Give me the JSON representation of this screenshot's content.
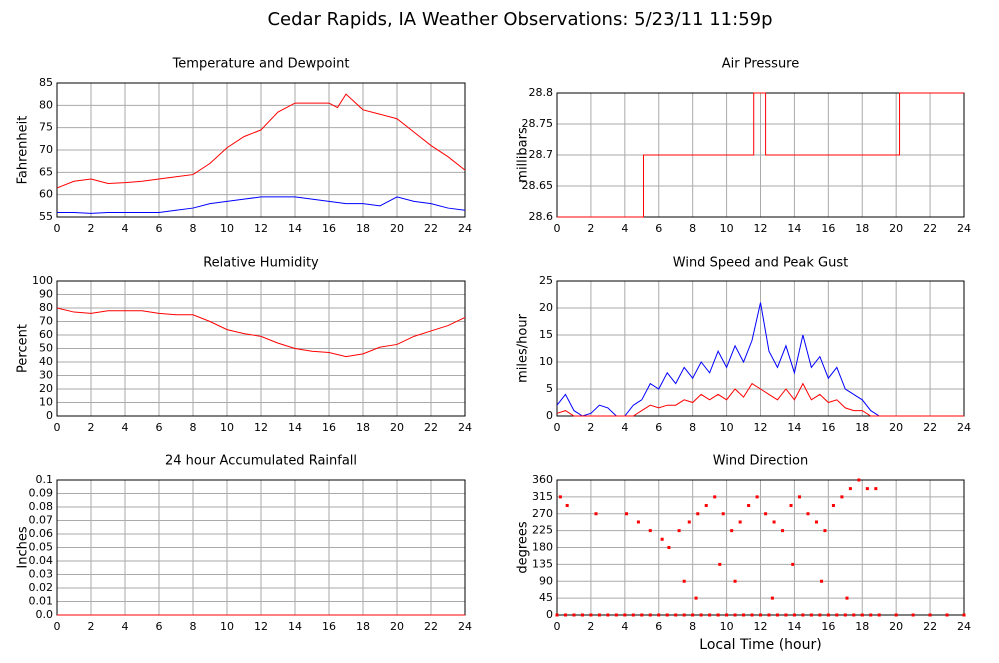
{
  "title": "Cedar Rapids, IA Weather Observations: 5/23/11 11:59p",
  "chart_data": [
    {
      "type": "line",
      "title": "Temperature and Dewpoint",
      "ylabel": "Fahrenheit",
      "xlim": [
        0,
        24
      ],
      "ylim": [
        55,
        85
      ],
      "xticks": [
        0,
        2,
        4,
        6,
        8,
        10,
        12,
        14,
        16,
        18,
        20,
        22,
        24
      ],
      "yticks": [
        55,
        60,
        65,
        70,
        75,
        80,
        85
      ],
      "grid": true,
      "series": [
        {
          "color": "#ff0000",
          "x": [
            0,
            1,
            2,
            3,
            4,
            5,
            6,
            7,
            8,
            9,
            10,
            11,
            12,
            13,
            14,
            15,
            16,
            16.5,
            17,
            18,
            19,
            20,
            21,
            22,
            23,
            24
          ],
          "values": [
            61.5,
            63,
            63.5,
            62.5,
            62.7,
            63,
            63.5,
            64,
            64.5,
            67,
            70.5,
            73,
            74.5,
            78.5,
            80.5,
            80.5,
            80.5,
            79.5,
            82.5,
            79,
            78,
            77,
            74,
            71,
            68.5,
            65.5
          ]
        },
        {
          "color": "#0000ff",
          "x": [
            0,
            1,
            2,
            3,
            4,
            5,
            6,
            7,
            8,
            9,
            10,
            11,
            12,
            13,
            14,
            15,
            16,
            17,
            18,
            19,
            20,
            21,
            22,
            23,
            24
          ],
          "values": [
            56,
            56,
            55.8,
            56,
            56,
            56,
            56,
            56.5,
            57,
            58,
            58.5,
            59,
            59.5,
            59.5,
            59.5,
            59,
            58.5,
            58,
            58,
            57.5,
            59.5,
            58.5,
            58,
            57,
            56.5
          ]
        }
      ]
    },
    {
      "type": "line",
      "title": "Air Pressure",
      "ylabel": "millibars",
      "xlim": [
        0,
        24
      ],
      "ylim": [
        28.6,
        28.8
      ],
      "xticks": [
        0,
        2,
        4,
        6,
        8,
        10,
        12,
        14,
        16,
        18,
        20,
        22,
        24
      ],
      "yticks": [
        28.6,
        28.65,
        28.7,
        28.75,
        28.8
      ],
      "grid": true,
      "series": [
        {
          "color": "#ff0000",
          "x": [
            0,
            5.1,
            5.1,
            11.6,
            11.6,
            12.3,
            12.3,
            20.2,
            20.2,
            24
          ],
          "values": [
            28.6,
            28.6,
            28.7,
            28.7,
            28.8,
            28.8,
            28.7,
            28.7,
            28.8,
            28.8
          ]
        }
      ]
    },
    {
      "type": "line",
      "title": "Relative Humidity",
      "ylabel": "Percent",
      "xlim": [
        0,
        24
      ],
      "ylim": [
        0,
        100
      ],
      "xticks": [
        0,
        2,
        4,
        6,
        8,
        10,
        12,
        14,
        16,
        18,
        20,
        22,
        24
      ],
      "yticks": [
        0,
        10,
        20,
        30,
        40,
        50,
        60,
        70,
        80,
        90,
        100
      ],
      "grid": true,
      "series": [
        {
          "color": "#ff0000",
          "x": [
            0,
            1,
            2,
            3,
            4,
            5,
            6,
            7,
            8,
            9,
            10,
            11,
            12,
            13,
            14,
            15,
            16,
            17,
            18,
            19,
            20,
            21,
            22,
            23,
            24
          ],
          "values": [
            80,
            77,
            76,
            78,
            78,
            78,
            76,
            75,
            75,
            70,
            64,
            61,
            59,
            54,
            50,
            48,
            47,
            44,
            46,
            51,
            53,
            59,
            63,
            67,
            73
          ]
        }
      ]
    },
    {
      "type": "line",
      "title": "Wind Speed and Peak Gust",
      "ylabel": "miles/hour",
      "xlim": [
        0,
        24
      ],
      "ylim": [
        0,
        25
      ],
      "xticks": [
        0,
        2,
        4,
        6,
        8,
        10,
        12,
        14,
        16,
        18,
        20,
        22,
        24
      ],
      "yticks": [
        0,
        5,
        10,
        15,
        20,
        25
      ],
      "grid": true,
      "series": [
        {
          "color": "#0000ff",
          "x": [
            0,
            0.5,
            1,
            1.5,
            2,
            2.5,
            3,
            3.5,
            4,
            4.5,
            5,
            5.5,
            6,
            6.5,
            7,
            7.5,
            8,
            8.5,
            9,
            9.5,
            10,
            10.5,
            11,
            11.5,
            12,
            12.5,
            13,
            13.5,
            14,
            14.5,
            15,
            15.5,
            16,
            16.5,
            17,
            17.5,
            18,
            18.5,
            19,
            20,
            21,
            22,
            23,
            24
          ],
          "values": [
            2,
            4,
            1,
            0,
            0.5,
            2,
            1.5,
            0,
            0,
            2,
            3,
            6,
            5,
            8,
            6,
            9,
            7,
            10,
            8,
            12,
            9,
            13,
            10,
            14,
            21,
            12,
            9,
            13,
            8,
            15,
            9,
            11,
            7,
            9,
            5,
            4,
            3,
            1,
            0,
            0,
            0,
            0,
            0,
            0
          ]
        },
        {
          "color": "#ff0000",
          "x": [
            0,
            0.5,
            1,
            1.5,
            2,
            2.5,
            3,
            3.5,
            4,
            4.5,
            5,
            5.5,
            6,
            6.5,
            7,
            7.5,
            8,
            8.5,
            9,
            9.5,
            10,
            10.5,
            11,
            11.5,
            12,
            12.5,
            13,
            13.5,
            14,
            14.5,
            15,
            15.5,
            16,
            16.5,
            17,
            17.5,
            18,
            18.5,
            19,
            20,
            21,
            22,
            23,
            24
          ],
          "values": [
            0.5,
            1,
            0,
            0,
            0,
            0,
            0,
            0,
            0,
            0,
            1,
            2,
            1.5,
            2,
            2,
            3,
            2.5,
            4,
            3,
            4,
            3,
            5,
            3.5,
            6,
            5,
            4,
            3,
            5,
            3,
            6,
            3,
            4,
            2.5,
            3,
            1.5,
            1,
            1,
            0,
            0,
            0,
            0,
            0,
            0,
            0
          ]
        }
      ]
    },
    {
      "type": "line",
      "title": "24 hour Accumulated Rainfall",
      "ylabel": "Inches",
      "xlim": [
        0,
        24
      ],
      "ylim": [
        0,
        0.1
      ],
      "xticks": [
        0,
        2,
        4,
        6,
        8,
        10,
        12,
        14,
        16,
        18,
        20,
        22,
        24
      ],
      "yticks": [
        {
          "value": 0,
          "label": "0.0"
        },
        0.01,
        0.02,
        0.03,
        0.04,
        0.05,
        0.06,
        0.07,
        0.08,
        0.09,
        0.1
      ],
      "grid": true,
      "series": [
        {
          "color": "#ff0000",
          "x": [
            0,
            24
          ],
          "values": [
            0,
            0
          ]
        }
      ]
    },
    {
      "type": "scatter",
      "title": "Wind Direction",
      "ylabel": "degrees",
      "xlabel": "Local Time (hour)",
      "xlim": [
        0,
        24
      ],
      "ylim": [
        0,
        360
      ],
      "xticks": [
        0,
        2,
        4,
        6,
        8,
        10,
        12,
        14,
        16,
        18,
        20,
        22,
        24
      ],
      "yticks": [
        0,
        45,
        90,
        135,
        180,
        225,
        270,
        315,
        360
      ],
      "grid": true,
      "series": [
        {
          "color": "#ff0000",
          "x": [
            0,
            0.5,
            1,
            1.5,
            2,
            2.5,
            3,
            3.5,
            4,
            4.5,
            5,
            5.5,
            6,
            6.5,
            7,
            7.5,
            8,
            8.5,
            9,
            9.5,
            10,
            10.5,
            11,
            11.5,
            12,
            12.5,
            13,
            13.5,
            14,
            14.5,
            15,
            15.5,
            16,
            16.5,
            17,
            17.5,
            18,
            18.5,
            19,
            20,
            21,
            22,
            23,
            24,
            0.2,
            0.6,
            2.3,
            4.1,
            4.8,
            5.5,
            6.2,
            6.6,
            7.2,
            7.8,
            8.3,
            8.8,
            9.3,
            9.8,
            10.3,
            10.8,
            11.3,
            11.8,
            12.3,
            12.8,
            13.3,
            13.8,
            14.3,
            14.8,
            15.3,
            15.8,
            16.3,
            16.8,
            17.3,
            17.8,
            18.3,
            18.8,
            7.5,
            8.2,
            9.6,
            10.5,
            12.7,
            13.9,
            15.6,
            17.1
          ],
          "values": [
            0,
            0,
            0,
            0,
            0,
            0,
            0,
            0,
            0,
            0,
            0,
            0,
            0,
            0,
            0,
            0,
            0,
            0,
            0,
            0,
            0,
            0,
            0,
            0,
            0,
            0,
            0,
            0,
            0,
            0,
            0,
            0,
            0,
            0,
            0,
            0,
            0,
            0,
            0,
            0,
            0,
            0,
            0,
            0,
            315,
            292,
            270,
            270,
            248,
            225,
            202,
            180,
            225,
            248,
            270,
            292,
            315,
            270,
            225,
            248,
            292,
            315,
            270,
            248,
            225,
            292,
            315,
            270,
            248,
            225,
            292,
            315,
            337,
            360,
            337,
            337,
            90,
            45,
            135,
            90,
            45,
            135,
            90,
            45
          ]
        }
      ]
    }
  ]
}
